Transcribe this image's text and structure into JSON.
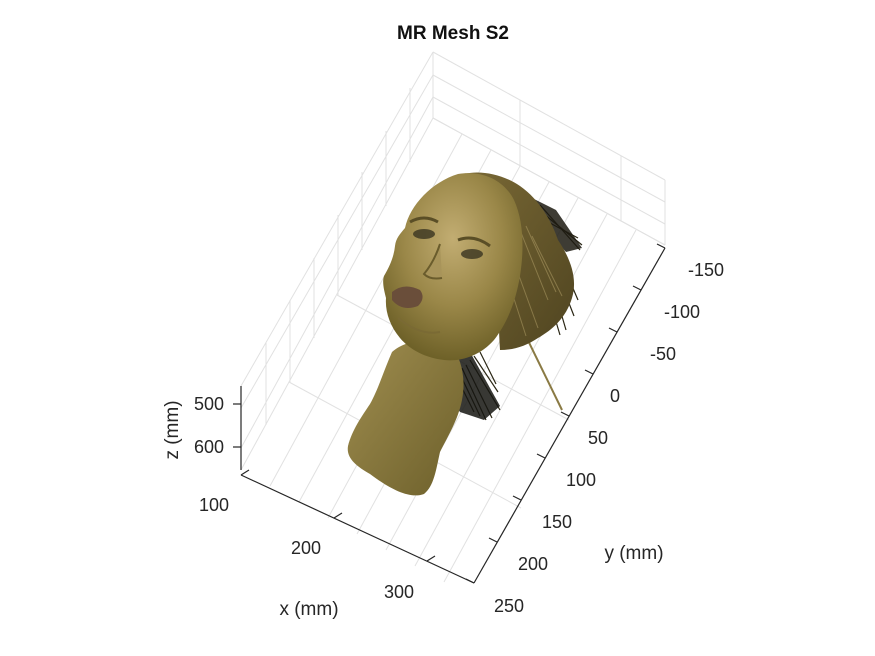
{
  "chart_data": {
    "type": "surface",
    "title": "MR Mesh S2",
    "xlabel": "x (mm)",
    "ylabel": "y (mm)",
    "zlabel": "z (mm)",
    "x_ticks": [
      "100",
      "200",
      "300"
    ],
    "y_ticks": [
      "-150",
      "-100",
      "-50",
      "0",
      "50",
      "100",
      "150",
      "200",
      "250"
    ],
    "z_ticks": [
      "500",
      "600"
    ],
    "grid": true,
    "colors": {
      "skin": "#8a7a3c",
      "skin_light": "#b8a468",
      "shadow": "#1a1a10",
      "axis": "#262626",
      "grid": "#e1e1e1"
    }
  }
}
